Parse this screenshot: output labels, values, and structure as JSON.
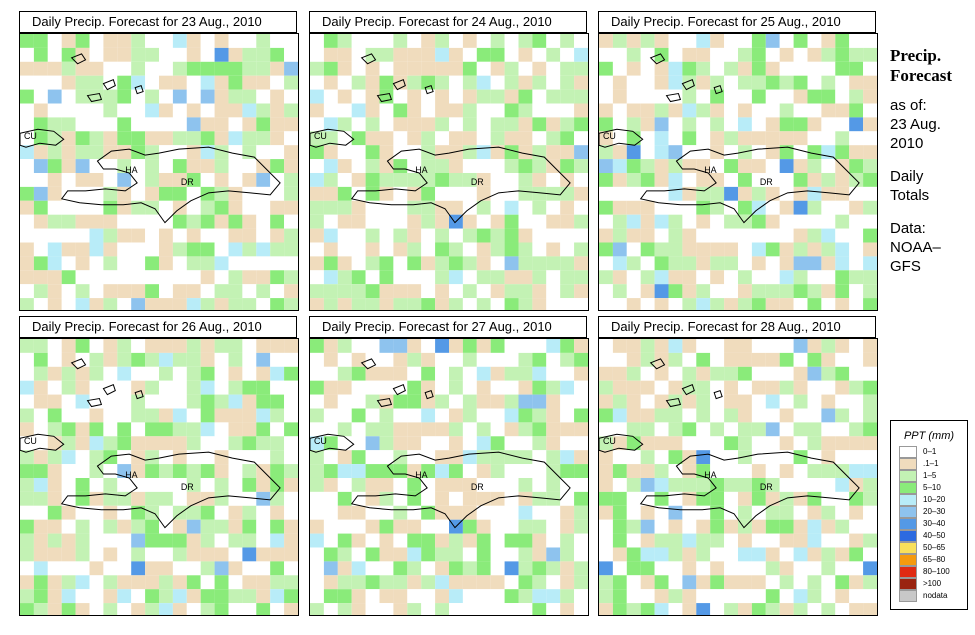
{
  "panels": [
    {
      "title": "Daily Precip. Forecast for  23 Aug., 2010"
    },
    {
      "title": "Daily Precip. Forecast for  24 Aug., 2010"
    },
    {
      "title": "Daily Precip. Forecast for  25 Aug., 2010"
    },
    {
      "title": "Daily Precip. Forecast for  26 Aug., 2010"
    },
    {
      "title": "Daily Precip. Forecast for  27 Aug., 2010"
    },
    {
      "title": "Daily Precip. Forecast for  28 Aug., 2010"
    }
  ],
  "map_labels": {
    "cuba": "CU",
    "haiti": "HA",
    "dominican_republic": "DR"
  },
  "side": {
    "heading_line1": "Precip.",
    "heading_line2": "Forecast",
    "asof": "as of:",
    "date_line1": "23 Aug.",
    "date_line2": "2010",
    "totals_line1": "Daily",
    "totals_line2": "Totals",
    "data_line1": "Data:",
    "data_line2": "NOAA–",
    "data_line3": "GFS"
  },
  "legend": {
    "title": "PPT (mm)",
    "items": [
      {
        "label": "0–1",
        "color": "#ffffff"
      },
      {
        "label": ".1–1",
        "color": "#f0dcbd"
      },
      {
        "label": "1–5",
        "color": "#c3f2b4"
      },
      {
        "label": "5–10",
        "color": "#8aeb7a"
      },
      {
        "label": "10–20",
        "color": "#b8ecf8"
      },
      {
        "label": "20–30",
        "color": "#8ec3ee"
      },
      {
        "label": "30–40",
        "color": "#5499e6"
      },
      {
        "label": "40–50",
        "color": "#2c6ae0"
      },
      {
        "label": "50–65",
        "color": "#f9e05a"
      },
      {
        "label": "65–80",
        "color": "#f59a0e"
      },
      {
        "label": "80–100",
        "color": "#e02a12"
      },
      {
        "label": ">100",
        "color": "#9a2410"
      },
      {
        "label": "nodata",
        "color": "#c8c8c8"
      }
    ]
  }
}
